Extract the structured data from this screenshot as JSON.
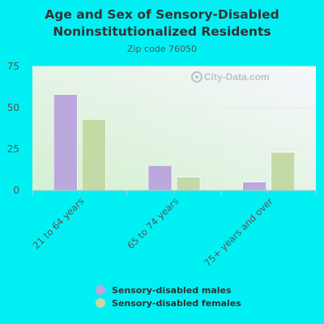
{
  "title_line1": "Age and Sex of Sensory-Disabled",
  "title_line2": "Noninstitutionalized Residents",
  "subtitle": "Zip code 76050",
  "watermark": "City-Data.com",
  "colors": {
    "background": "#00f0f4",
    "males": "#bba8dc",
    "females": "#c3d9a6"
  },
  "chart_data": {
    "type": "bar",
    "title": "Age and Sex of Sensory-Disabled Noninstitutionalized Residents",
    "subtitle": "Zip code 76050",
    "categories": [
      "21 to 64 years",
      "65 to 74 years",
      "75+ years and over"
    ],
    "series": [
      {
        "name": "Sensory-disabled males",
        "values": [
          58,
          15,
          5
        ]
      },
      {
        "name": "Sensory-disabled females",
        "values": [
          43,
          8,
          23
        ]
      }
    ],
    "ylim": [
      0,
      75
    ],
    "yticks": [
      0,
      25,
      50,
      75
    ],
    "grid": true,
    "legend_position": "bottom"
  }
}
